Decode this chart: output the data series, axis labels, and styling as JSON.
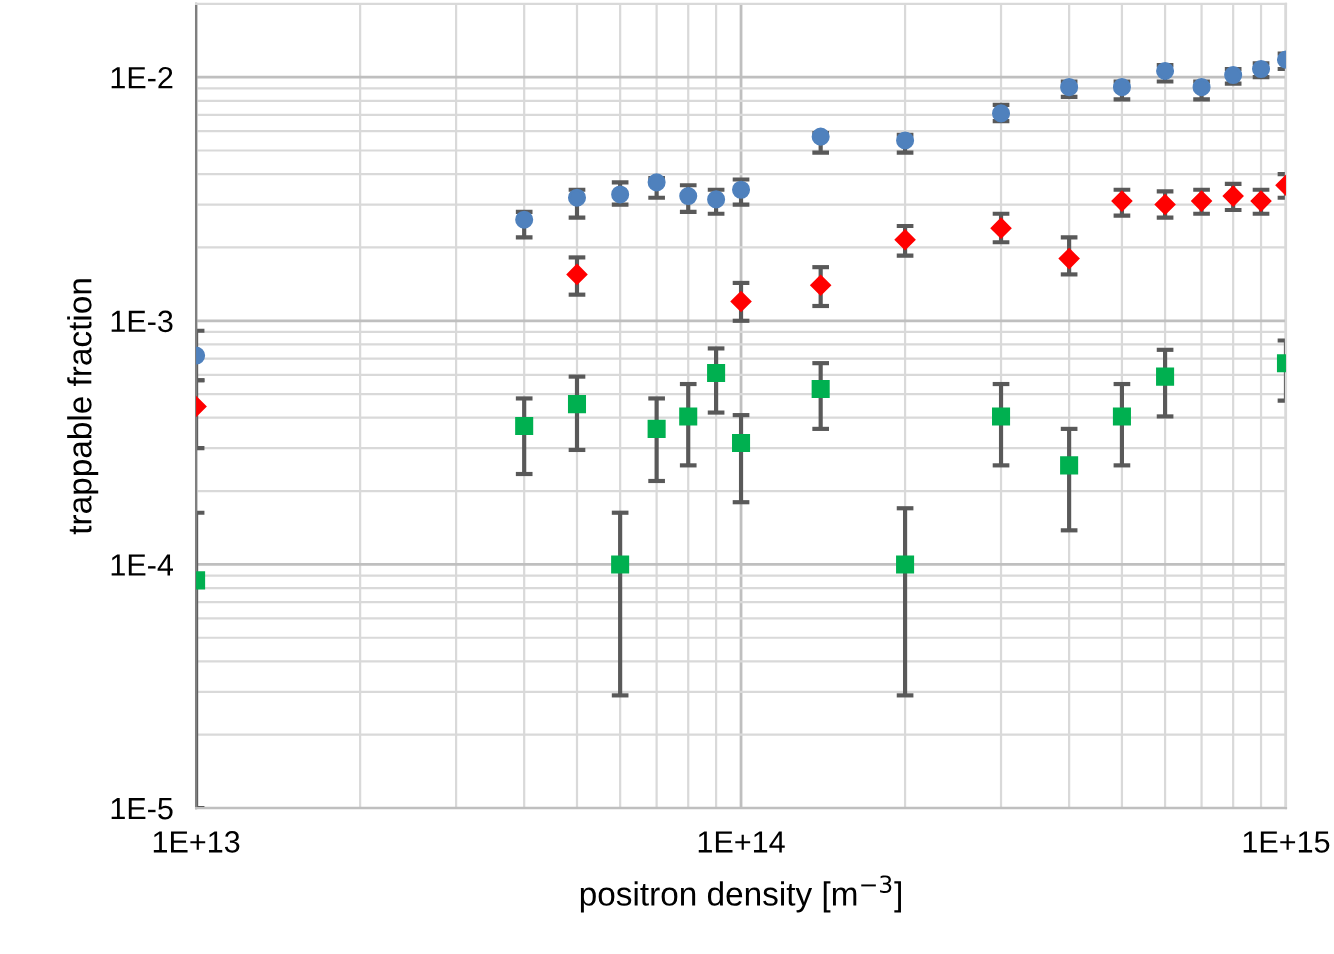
{
  "chart_data": {
    "type": "scatter",
    "xlabel": "positron density [m$^{−3}$]",
    "ylabel": "trappable fraction",
    "log": "xy",
    "grid": true,
    "xlim": [
      10000000000000.0,
      1000000000000000.0
    ],
    "ylim": [
      1e-05,
      0.02
    ],
    "xticks": [
      {
        "value": 10000000000000.0,
        "label": "1E+13"
      },
      {
        "value": 100000000000000.0,
        "label": "1E+14"
      },
      {
        "value": 1000000000000000.0,
        "label": "1E+15"
      }
    ],
    "yticks": [
      {
        "value": 1e-05,
        "label": "1E-5"
      },
      {
        "value": 0.0001,
        "label": "1E-4"
      },
      {
        "value": 0.001,
        "label": "1E-3"
      },
      {
        "value": 0.01,
        "label": "1E-2"
      }
    ],
    "series": [
      {
        "color": "#4f81bd",
        "marker": "circle",
        "x": [
          10000000000000.0,
          40000000000000.0,
          50000000000000.0,
          60000000000000.0,
          70000000000000.0,
          80000000000000.0,
          90000000000000.0,
          100000000000000.0,
          140000000000000.0,
          200000000000000.0,
          300000000000000.0,
          400000000000000.0,
          500000000000000.0,
          600000000000000.0,
          700000000000000.0,
          800000000000000.0,
          900000000000000.0,
          1000000000000000.0
        ],
        "values": [
          0.00072,
          0.0026,
          0.0032,
          0.0033,
          0.0037,
          0.00325,
          0.00315,
          0.00345,
          0.0057,
          0.0055,
          0.0071,
          0.0091,
          0.0091,
          0.0106,
          0.0091,
          0.0102,
          0.0108,
          0.0118
        ],
        "errors": [
          [
            0.00057,
            0.00091
          ],
          [
            0.0022,
            0.0028
          ],
          [
            0.00265,
            0.00345
          ],
          [
            0.003,
            0.0037
          ],
          [
            0.0032,
            0.00385
          ],
          [
            0.0028,
            0.0036
          ],
          [
            0.00275,
            0.00345
          ],
          [
            0.003,
            0.0038
          ],
          [
            0.0049,
            0.0059
          ],
          [
            0.0049,
            0.0058
          ],
          [
            0.0066,
            0.0077
          ],
          [
            0.0083,
            0.0096
          ],
          [
            0.0081,
            0.0096
          ],
          [
            0.0096,
            0.0112
          ],
          [
            0.0081,
            0.0096
          ],
          [
            0.0094,
            0.0108
          ],
          [
            0.01,
            0.0114
          ],
          [
            0.0108,
            0.0125
          ]
        ]
      },
      {
        "color": "#ff0000",
        "marker": "diamond",
        "x": [
          10000000000000.0,
          50000000000000.0,
          100000000000000.0,
          140000000000000.0,
          200000000000000.0,
          300000000000000.0,
          400000000000000.0,
          500000000000000.0,
          600000000000000.0,
          700000000000000.0,
          800000000000000.0,
          900000000000000.0,
          1000000000000000.0
        ],
        "values": [
          0.000445,
          0.00155,
          0.0012,
          0.0014,
          0.00215,
          0.0024,
          0.0018,
          0.0031,
          0.003,
          0.0031,
          0.00325,
          0.0031,
          0.0036
        ],
        "errors": [
          [
            0.0003,
            0.00057
          ],
          [
            0.00128,
            0.00182
          ],
          [
            0.001,
            0.00143
          ],
          [
            0.00115,
            0.00166
          ],
          [
            0.00185,
            0.00245
          ],
          [
            0.0021,
            0.00275
          ],
          [
            0.00155,
            0.0022
          ],
          [
            0.0027,
            0.00345
          ],
          [
            0.00265,
            0.0034
          ],
          [
            0.00275,
            0.00345
          ],
          [
            0.00285,
            0.00365
          ],
          [
            0.00275,
            0.00345
          ],
          [
            0.0032,
            0.004
          ]
        ]
      },
      {
        "color": "#00b050",
        "marker": "square",
        "x": [
          10000000000000.0,
          40000000000000.0,
          50000000000000.0,
          60000000000000.0,
          70000000000000.0,
          80000000000000.0,
          90000000000000.0,
          100000000000000.0,
          140000000000000.0,
          200000000000000.0,
          300000000000000.0,
          400000000000000.0,
          500000000000000.0,
          600000000000000.0,
          1000000000000000.0
        ],
        "values": [
          8.6e-05,
          0.00037,
          0.000455,
          0.0001,
          0.00036,
          0.000405,
          0.00061,
          0.000315,
          0.000525,
          0.0001,
          0.000405,
          0.000255,
          0.000405,
          0.00059,
          0.00067
        ],
        "errors": [
          [
            1e-05,
            0.000163
          ],
          [
            0.000235,
            0.00048
          ],
          [
            0.000295,
            0.00059
          ],
          [
            2.9e-05,
            0.000163
          ],
          [
            0.00022,
            0.00048
          ],
          [
            0.000255,
            0.00055
          ],
          [
            0.00042,
            0.00077
          ],
          [
            0.00018,
            0.00041
          ],
          [
            0.00036,
            0.00067
          ],
          [
            2.9e-05,
            0.00017
          ],
          [
            0.000255,
            0.00055
          ],
          [
            0.000138,
            0.00036
          ],
          [
            0.000255,
            0.00055
          ],
          [
            0.000405,
            0.00076
          ],
          [
            0.00047,
            0.00083
          ]
        ]
      }
    ]
  }
}
